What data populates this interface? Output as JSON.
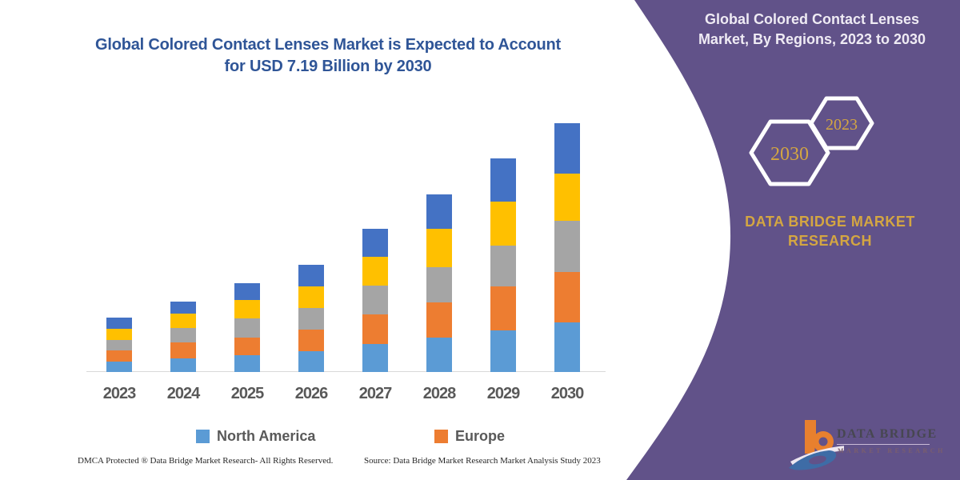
{
  "title": {
    "line1": "Global Colored Contact Lenses Market is Expected to Account",
    "line2": "for USD 7.19 Billion by 2030"
  },
  "side_panel": {
    "heading_line1": "Global Colored Contact Lenses",
    "heading_line2": "Market, By Regions, 2023 to 2030",
    "hexagon_large_year": "2030",
    "hexagon_small_year": "2023",
    "brand_line1": "DATA BRIDGE MARKET",
    "brand_line2": "RESEARCH",
    "panel_color": "#615289",
    "accent_gold": "#D4A642"
  },
  "logo": {
    "name": "DATA BRIDGE",
    "subtitle": "MARKET RESEARCH",
    "mark_orange": "#E8802E",
    "mark_blue": "#3E6CA6"
  },
  "footer": {
    "left": "DMCA Protected ® Data Bridge Market Research-  All Rights Reserved.",
    "right": "Source: Data Bridge Market Research  Market Analysis Study 2023"
  },
  "legend": [
    {
      "label": "North America",
      "color": "#5B9BD5"
    },
    {
      "label": "Europe",
      "color": "#ED7D31"
    }
  ],
  "chart_data": {
    "type": "bar",
    "stacked": true,
    "title": "Global Colored Contact Lenses Market is Expected to Account for USD 7.19 Billion by 2030",
    "unit": "USD Billion",
    "categories": [
      "2023",
      "2024",
      "2025",
      "2026",
      "2027",
      "2028",
      "2029",
      "2030"
    ],
    "series": [
      {
        "name": "North America",
        "color": "#5B9BD5",
        "in_legend": true,
        "values": [
          0.3,
          0.39,
          0.48,
          0.59,
          0.81,
          1.0,
          1.21,
          1.43
        ]
      },
      {
        "name": "Europe",
        "color": "#ED7D31",
        "in_legend": true,
        "values": [
          0.32,
          0.46,
          0.52,
          0.64,
          0.85,
          1.0,
          1.27,
          1.46
        ]
      },
      {
        "name": "unlabeled (gray)",
        "color": "#A5A5A5",
        "in_legend": false,
        "values": [
          0.3,
          0.42,
          0.54,
          0.62,
          0.83,
          1.04,
          1.18,
          1.48
        ]
      },
      {
        "name": "unlabeled (yellow)",
        "color": "#FFC000",
        "in_legend": false,
        "values": [
          0.32,
          0.42,
          0.54,
          0.63,
          0.83,
          1.09,
          1.27,
          1.36
        ]
      },
      {
        "name": "unlabeled (dark blue)",
        "color": "#4472C4",
        "in_legend": false,
        "values": [
          0.33,
          0.35,
          0.48,
          0.62,
          0.81,
          1.0,
          1.25,
          1.46
        ]
      }
    ],
    "totals_estimated": [
      1.57,
      2.04,
      2.56,
      3.1,
      4.13,
      5.13,
      6.18,
      7.19
    ],
    "ylim": [
      0,
      7.5
    ],
    "grid": false,
    "y_axis_shown": false,
    "legend_position": "bottom",
    "legend_labels_shown": [
      "North America",
      "Europe"
    ],
    "axis_line_color": "#D9D9D9"
  }
}
